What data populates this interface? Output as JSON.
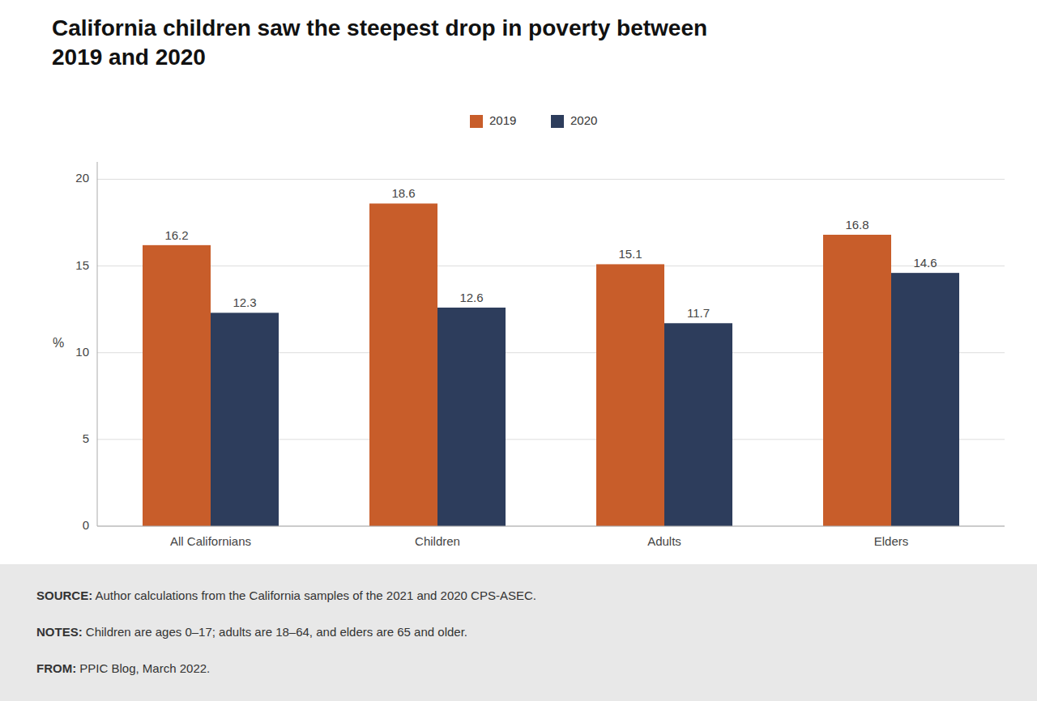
{
  "chart_data": {
    "type": "bar",
    "title": "California children saw the steepest drop in poverty between\n2019 and 2020",
    "categories": [
      "All Californians",
      "Children",
      "Adults",
      "Elders"
    ],
    "series": [
      {
        "name": "2019",
        "color": "#C85D2A",
        "values": [
          16.2,
          18.6,
          15.1,
          16.8
        ]
      },
      {
        "name": "2020",
        "color": "#2D3D5C",
        "values": [
          12.3,
          12.6,
          11.7,
          14.6
        ]
      }
    ],
    "ylabel": "%",
    "ylim": [
      0,
      21
    ],
    "yticks": [
      0,
      5,
      10,
      15,
      20
    ],
    "grid": true,
    "legend": "top",
    "data_labels": true,
    "annotations": [
      {
        "bold": "SOURCE:",
        "text": " Author calculations from the California samples of the 2021 and 2020 CPS-ASEC."
      },
      {
        "bold": "NOTES:",
        "text": " Children are ages 0–17; adults are 18–64, and elders are 65 and older."
      },
      {
        "bold": "FROM:",
        "text": " PPIC Blog, March 2022."
      }
    ]
  }
}
